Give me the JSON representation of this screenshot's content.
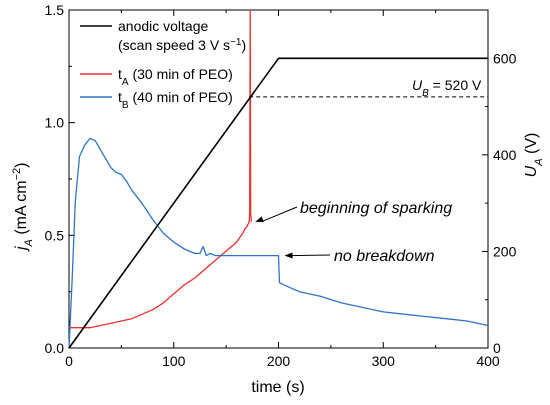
{
  "chart_data": {
    "type": "line",
    "x_axis": {
      "label": "time (s)",
      "range": [
        0,
        400
      ],
      "ticks": [
        "0",
        "100",
        "200",
        "300",
        "400"
      ]
    },
    "y_axis_left": {
      "label_main": "j",
      "label_sub": "A",
      "label_units": " (mA cm",
      "label_sup": "−2",
      "label_close": ")",
      "range": [
        0,
        1.5
      ],
      "ticks": [
        "0.0",
        "0.5",
        "1.0",
        "1.5"
      ]
    },
    "y_axis_right": {
      "label_main": "U",
      "label_sub": "A",
      "label_units": " (V)",
      "range": [
        0,
        700
      ],
      "ticks": [
        "0",
        "200",
        "400",
        "600"
      ]
    },
    "legend": {
      "placement": "top-left",
      "entries": [
        {
          "series": "anodic_voltage",
          "line1": "anodic voltage",
          "line2_main": "(scan speed 3 V s",
          "line2_sup": "−1",
          "line2_close": ")"
        },
        {
          "series": "tA",
          "main": "t",
          "sub": "A",
          "rest": " (30 min of PEO)"
        },
        {
          "series": "tB",
          "main": "t",
          "sub": "B",
          "rest": " (40 min of PEO)"
        }
      ]
    },
    "reference_line": {
      "label_main": "U",
      "label_sub": "B",
      "label_rest": " = 520 V",
      "value_right_axis": 520,
      "x_start": 172,
      "x_end": 400
    },
    "annotations": [
      {
        "text": "beginning of sparking",
        "arrow_to": [
          172,
          0.56
        ]
      },
      {
        "text": "no breakdown",
        "arrow_to": [
          200,
          0.41
        ]
      }
    ],
    "series": [
      {
        "id": "anodic_voltage",
        "axis": "right",
        "color": "#000000",
        "x": [
          0,
          200,
          400
        ],
        "y": [
          0,
          600,
          600
        ]
      },
      {
        "id": "tA",
        "axis": "left",
        "color": "#e8322f",
        "x": [
          0,
          10,
          20,
          30,
          40,
          50,
          60,
          70,
          80,
          90,
          100,
          110,
          120,
          130,
          140,
          150,
          155,
          160,
          163,
          166,
          168,
          170,
          171,
          172,
          172.5,
          173,
          173.5,
          174
        ],
        "y": [
          0.09,
          0.09,
          0.09,
          0.1,
          0.11,
          0.12,
          0.13,
          0.15,
          0.17,
          0.2,
          0.24,
          0.28,
          0.31,
          0.35,
          0.39,
          0.43,
          0.45,
          0.47,
          0.49,
          0.51,
          0.53,
          0.54,
          0.55,
          0.56,
          0.6,
          1.5,
          0.6,
          0.56
        ]
      },
      {
        "id": "tB",
        "axis": "left",
        "color": "#2e73c9",
        "x": [
          0,
          3,
          6,
          10,
          15,
          20,
          25,
          30,
          35,
          40,
          45,
          50,
          55,
          60,
          70,
          80,
          90,
          100,
          110,
          120,
          125,
          128,
          131,
          135,
          140,
          150,
          160,
          170,
          180,
          190,
          198,
          200,
          201,
          210,
          220,
          240,
          260,
          280,
          300,
          320,
          340,
          360,
          380,
          390,
          400
        ],
        "y": [
          0.0,
          0.3,
          0.65,
          0.85,
          0.9,
          0.93,
          0.92,
          0.88,
          0.84,
          0.8,
          0.78,
          0.77,
          0.74,
          0.7,
          0.64,
          0.57,
          0.51,
          0.47,
          0.44,
          0.42,
          0.42,
          0.45,
          0.41,
          0.42,
          0.41,
          0.41,
          0.41,
          0.41,
          0.41,
          0.41,
          0.41,
          0.41,
          0.29,
          0.27,
          0.25,
          0.23,
          0.2,
          0.18,
          0.16,
          0.15,
          0.14,
          0.13,
          0.12,
          0.11,
          0.1
        ]
      }
    ]
  }
}
